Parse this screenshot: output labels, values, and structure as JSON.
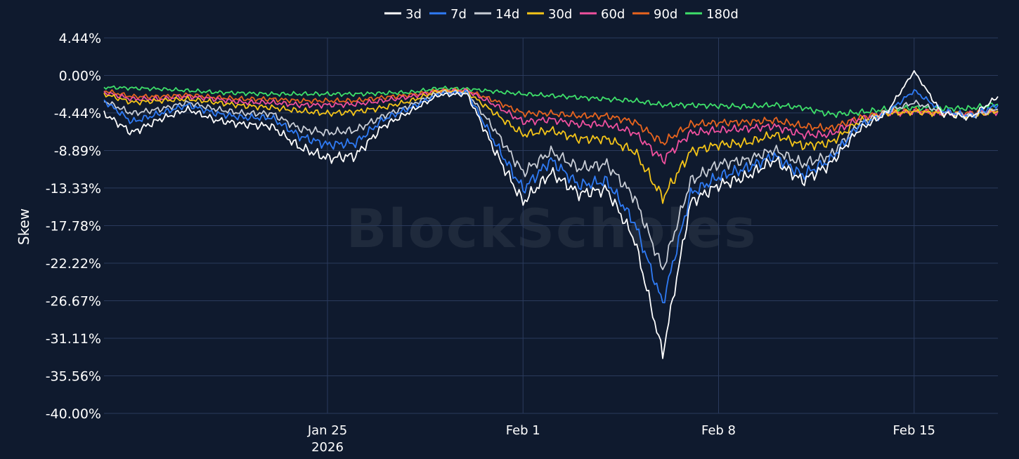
{
  "chart_data": {
    "type": "line",
    "title": "",
    "ylabel": "Skew",
    "xlabel": "",
    "ylim": [
      -40.0,
      4.44
    ],
    "y_ticks": [
      "4.44%",
      "0.00%",
      "-4.44%",
      "-8.89%",
      "-13.33%",
      "-17.78%",
      "-22.22%",
      "-26.67%",
      "-31.11%",
      "-35.56%",
      "-40.00%"
    ],
    "y_tick_values": [
      4.44,
      0.0,
      -4.44,
      -8.89,
      -13.33,
      -17.78,
      -22.22,
      -26.67,
      -31.11,
      -35.56,
      -40.0
    ],
    "x_range": [
      "2026-01-17",
      "2026-02-18"
    ],
    "x_ticks": [
      {
        "date": "2026-01-25",
        "label": "Jan 25",
        "sublabel": "2026"
      },
      {
        "date": "2026-02-01",
        "label": "Feb 1",
        "sublabel": ""
      },
      {
        "date": "2026-02-08",
        "label": "Feb 8",
        "sublabel": ""
      },
      {
        "date": "2026-02-15",
        "label": "Feb 15",
        "sublabel": ""
      }
    ],
    "grid": true,
    "legend_position": "top-center",
    "watermark": "BlockScholes",
    "series": [
      {
        "name": "3d",
        "color": "#ffffff",
        "points": [
          [
            "2026-01-17",
            -4.5
          ],
          [
            "2026-01-18",
            -6.8
          ],
          [
            "2026-01-19",
            -5.2
          ],
          [
            "2026-01-20",
            -4.0
          ],
          [
            "2026-01-21",
            -5.3
          ],
          [
            "2026-01-22",
            -5.8
          ],
          [
            "2026-01-23",
            -6.0
          ],
          [
            "2026-01-24",
            -8.5
          ],
          [
            "2026-01-25",
            -9.8
          ],
          [
            "2026-01-26",
            -9.5
          ],
          [
            "2026-01-27",
            -6.0
          ],
          [
            "2026-01-28",
            -4.2
          ],
          [
            "2026-01-29",
            -2.3
          ],
          [
            "2026-01-30",
            -2.2
          ],
          [
            "2026-01-31",
            -9.0
          ],
          [
            "2026-02-01",
            -15.0
          ],
          [
            "2026-02-02",
            -11.5
          ],
          [
            "2026-02-03",
            -14.0
          ],
          [
            "2026-02-04",
            -13.5
          ],
          [
            "2026-02-05",
            -19.5
          ],
          [
            "2026-02-06",
            -33.0
          ],
          [
            "2026-02-07",
            -15.0
          ],
          [
            "2026-02-08",
            -13.0
          ],
          [
            "2026-02-09",
            -12.0
          ],
          [
            "2026-02-10",
            -10.0
          ],
          [
            "2026-02-11",
            -12.5
          ],
          [
            "2026-02-12",
            -10.5
          ],
          [
            "2026-02-13",
            -6.5
          ],
          [
            "2026-02-14",
            -4.5
          ],
          [
            "2026-02-15",
            0.5
          ],
          [
            "2026-02-16",
            -4.5
          ],
          [
            "2026-02-17",
            -5.0
          ],
          [
            "2026-02-18",
            -2.5
          ]
        ]
      },
      {
        "name": "7d",
        "color": "#2f7bf5",
        "points": [
          [
            "2026-01-17",
            -3.0
          ],
          [
            "2026-01-18",
            -5.5
          ],
          [
            "2026-01-19",
            -4.5
          ],
          [
            "2026-01-20",
            -3.5
          ],
          [
            "2026-01-21",
            -4.5
          ],
          [
            "2026-01-22",
            -5.0
          ],
          [
            "2026-01-23",
            -5.0
          ],
          [
            "2026-01-24",
            -7.2
          ],
          [
            "2026-01-25",
            -8.2
          ],
          [
            "2026-01-26",
            -8.0
          ],
          [
            "2026-01-27",
            -5.2
          ],
          [
            "2026-01-28",
            -3.8
          ],
          [
            "2026-01-29",
            -2.2
          ],
          [
            "2026-01-30",
            -2.0
          ],
          [
            "2026-01-31",
            -8.0
          ],
          [
            "2026-02-01",
            -13.5
          ],
          [
            "2026-02-02",
            -10.0
          ],
          [
            "2026-02-03",
            -13.0
          ],
          [
            "2026-02-04",
            -12.5
          ],
          [
            "2026-02-05",
            -17.5
          ],
          [
            "2026-02-06",
            -27.0
          ],
          [
            "2026-02-07",
            -14.0
          ],
          [
            "2026-02-08",
            -12.0
          ],
          [
            "2026-02-09",
            -11.0
          ],
          [
            "2026-02-10",
            -9.5
          ],
          [
            "2026-02-11",
            -11.8
          ],
          [
            "2026-02-12",
            -10.0
          ],
          [
            "2026-02-13",
            -6.0
          ],
          [
            "2026-02-14",
            -4.5
          ],
          [
            "2026-02-15",
            -1.8
          ],
          [
            "2026-02-16",
            -4.2
          ],
          [
            "2026-02-17",
            -4.8
          ],
          [
            "2026-02-18",
            -3.5
          ]
        ]
      },
      {
        "name": "14d",
        "color": "#c8cdd6",
        "points": [
          [
            "2026-01-17",
            -3.0
          ],
          [
            "2026-01-18",
            -4.5
          ],
          [
            "2026-01-19",
            -4.0
          ],
          [
            "2026-01-20",
            -3.2
          ],
          [
            "2026-01-21",
            -4.0
          ],
          [
            "2026-01-22",
            -4.5
          ],
          [
            "2026-01-23",
            -4.5
          ],
          [
            "2026-01-24",
            -6.3
          ],
          [
            "2026-01-25",
            -6.8
          ],
          [
            "2026-01-26",
            -6.5
          ],
          [
            "2026-01-27",
            -4.8
          ],
          [
            "2026-01-28",
            -3.5
          ],
          [
            "2026-01-29",
            -2.0
          ],
          [
            "2026-01-30",
            -2.0
          ],
          [
            "2026-01-31",
            -6.5
          ],
          [
            "2026-02-01",
            -11.5
          ],
          [
            "2026-02-02",
            -9.0
          ],
          [
            "2026-02-03",
            -11.0
          ],
          [
            "2026-02-04",
            -10.5
          ],
          [
            "2026-02-05",
            -14.5
          ],
          [
            "2026-02-06",
            -23.0
          ],
          [
            "2026-02-07",
            -12.5
          ],
          [
            "2026-02-08",
            -10.5
          ],
          [
            "2026-02-09",
            -10.0
          ],
          [
            "2026-02-10",
            -8.8
          ],
          [
            "2026-02-11",
            -10.5
          ],
          [
            "2026-02-12",
            -9.5
          ],
          [
            "2026-02-13",
            -5.8
          ],
          [
            "2026-02-14",
            -4.3
          ],
          [
            "2026-02-15",
            -3.2
          ],
          [
            "2026-02-16",
            -4.3
          ],
          [
            "2026-02-17",
            -4.8
          ],
          [
            "2026-02-18",
            -4.0
          ]
        ]
      },
      {
        "name": "30d",
        "color": "#f5c518",
        "points": [
          [
            "2026-01-17",
            -2.2
          ],
          [
            "2026-01-18",
            -3.2
          ],
          [
            "2026-01-19",
            -3.0
          ],
          [
            "2026-01-20",
            -2.8
          ],
          [
            "2026-01-21",
            -3.2
          ],
          [
            "2026-01-22",
            -3.6
          ],
          [
            "2026-01-23",
            -3.8
          ],
          [
            "2026-01-24",
            -4.2
          ],
          [
            "2026-01-25",
            -4.5
          ],
          [
            "2026-01-26",
            -4.3
          ],
          [
            "2026-01-27",
            -3.8
          ],
          [
            "2026-01-28",
            -3.0
          ],
          [
            "2026-01-29",
            -1.8
          ],
          [
            "2026-01-30",
            -2.0
          ],
          [
            "2026-01-31",
            -4.5
          ],
          [
            "2026-02-01",
            -7.0
          ],
          [
            "2026-02-02",
            -6.5
          ],
          [
            "2026-02-03",
            -7.5
          ],
          [
            "2026-02-04",
            -7.5
          ],
          [
            "2026-02-05",
            -9.0
          ],
          [
            "2026-02-06",
            -14.5
          ],
          [
            "2026-02-07",
            -9.0
          ],
          [
            "2026-02-08",
            -8.2
          ],
          [
            "2026-02-09",
            -8.0
          ],
          [
            "2026-02-10",
            -7.0
          ],
          [
            "2026-02-11",
            -8.3
          ],
          [
            "2026-02-12",
            -8.0
          ],
          [
            "2026-02-13",
            -5.5
          ],
          [
            "2026-02-14",
            -4.5
          ],
          [
            "2026-02-15",
            -4.3
          ],
          [
            "2026-02-16",
            -4.5
          ],
          [
            "2026-02-17",
            -4.8
          ],
          [
            "2026-02-18",
            -4.2
          ]
        ]
      },
      {
        "name": "60d",
        "color": "#f0509e",
        "points": [
          [
            "2026-01-17",
            -2.0
          ],
          [
            "2026-01-18",
            -2.8
          ],
          [
            "2026-01-19",
            -2.8
          ],
          [
            "2026-01-20",
            -2.5
          ],
          [
            "2026-01-21",
            -2.8
          ],
          [
            "2026-01-22",
            -3.2
          ],
          [
            "2026-01-23",
            -3.2
          ],
          [
            "2026-01-24",
            -3.5
          ],
          [
            "2026-01-25",
            -3.5
          ],
          [
            "2026-01-26",
            -3.4
          ],
          [
            "2026-01-27",
            -3.0
          ],
          [
            "2026-01-28",
            -2.5
          ],
          [
            "2026-01-29",
            -1.8
          ],
          [
            "2026-01-30",
            -1.8
          ],
          [
            "2026-01-31",
            -3.5
          ],
          [
            "2026-02-01",
            -5.5
          ],
          [
            "2026-02-02",
            -5.2
          ],
          [
            "2026-02-03",
            -5.8
          ],
          [
            "2026-02-04",
            -5.8
          ],
          [
            "2026-02-05",
            -6.8
          ],
          [
            "2026-02-06",
            -10.0
          ],
          [
            "2026-02-07",
            -6.8
          ],
          [
            "2026-02-08",
            -6.5
          ],
          [
            "2026-02-09",
            -6.3
          ],
          [
            "2026-02-10",
            -6.0
          ],
          [
            "2026-02-11",
            -7.0
          ],
          [
            "2026-02-12",
            -7.0
          ],
          [
            "2026-02-13",
            -5.2
          ],
          [
            "2026-02-14",
            -4.5
          ],
          [
            "2026-02-15",
            -4.3
          ],
          [
            "2026-02-16",
            -4.5
          ],
          [
            "2026-02-17",
            -4.6
          ],
          [
            "2026-02-18",
            -4.3
          ]
        ]
      },
      {
        "name": "90d",
        "color": "#e8641e",
        "points": [
          [
            "2026-01-17",
            -1.8
          ],
          [
            "2026-01-18",
            -2.5
          ],
          [
            "2026-01-19",
            -2.5
          ],
          [
            "2026-01-20",
            -2.3
          ],
          [
            "2026-01-21",
            -2.6
          ],
          [
            "2026-01-22",
            -2.8
          ],
          [
            "2026-01-23",
            -2.8
          ],
          [
            "2026-01-24",
            -3.0
          ],
          [
            "2026-01-25",
            -3.0
          ],
          [
            "2026-01-26",
            -3.0
          ],
          [
            "2026-01-27",
            -2.6
          ],
          [
            "2026-01-28",
            -2.3
          ],
          [
            "2026-01-29",
            -1.8
          ],
          [
            "2026-01-30",
            -1.8
          ],
          [
            "2026-01-31",
            -3.0
          ],
          [
            "2026-02-01",
            -4.5
          ],
          [
            "2026-02-02",
            -4.5
          ],
          [
            "2026-02-03",
            -4.8
          ],
          [
            "2026-02-04",
            -4.8
          ],
          [
            "2026-02-05",
            -5.5
          ],
          [
            "2026-02-06",
            -8.0
          ],
          [
            "2026-02-07",
            -5.8
          ],
          [
            "2026-02-08",
            -5.6
          ],
          [
            "2026-02-09",
            -5.5
          ],
          [
            "2026-02-10",
            -5.3
          ],
          [
            "2026-02-11",
            -6.0
          ],
          [
            "2026-02-12",
            -6.3
          ],
          [
            "2026-02-13",
            -5.0
          ],
          [
            "2026-02-14",
            -4.4
          ],
          [
            "2026-02-15",
            -4.2
          ],
          [
            "2026-02-16",
            -4.4
          ],
          [
            "2026-02-17",
            -4.5
          ],
          [
            "2026-02-18",
            -4.2
          ]
        ]
      },
      {
        "name": "180d",
        "color": "#3ee06a",
        "points": [
          [
            "2026-01-17",
            -1.4
          ],
          [
            "2026-01-18",
            -1.5
          ],
          [
            "2026-01-19",
            -1.6
          ],
          [
            "2026-01-20",
            -1.8
          ],
          [
            "2026-01-21",
            -2.0
          ],
          [
            "2026-01-22",
            -2.1
          ],
          [
            "2026-01-23",
            -2.2
          ],
          [
            "2026-01-24",
            -2.2
          ],
          [
            "2026-01-25",
            -2.2
          ],
          [
            "2026-01-26",
            -2.2
          ],
          [
            "2026-01-27",
            -2.1
          ],
          [
            "2026-01-28",
            -2.0
          ],
          [
            "2026-01-29",
            -1.5
          ],
          [
            "2026-01-30",
            -1.6
          ],
          [
            "2026-01-31",
            -1.9
          ],
          [
            "2026-02-01",
            -2.2
          ],
          [
            "2026-02-02",
            -2.4
          ],
          [
            "2026-02-03",
            -2.6
          ],
          [
            "2026-02-04",
            -2.8
          ],
          [
            "2026-02-05",
            -3.0
          ],
          [
            "2026-02-06",
            -3.5
          ],
          [
            "2026-02-07",
            -3.5
          ],
          [
            "2026-02-08",
            -3.6
          ],
          [
            "2026-02-09",
            -3.7
          ],
          [
            "2026-02-10",
            -3.5
          ],
          [
            "2026-02-11",
            -3.8
          ],
          [
            "2026-02-12",
            -4.6
          ],
          [
            "2026-02-13",
            -4.4
          ],
          [
            "2026-02-14",
            -4.0
          ],
          [
            "2026-02-15",
            -3.8
          ],
          [
            "2026-02-16",
            -3.9
          ],
          [
            "2026-02-17",
            -3.9
          ],
          [
            "2026-02-18",
            -3.4
          ]
        ]
      }
    ]
  }
}
